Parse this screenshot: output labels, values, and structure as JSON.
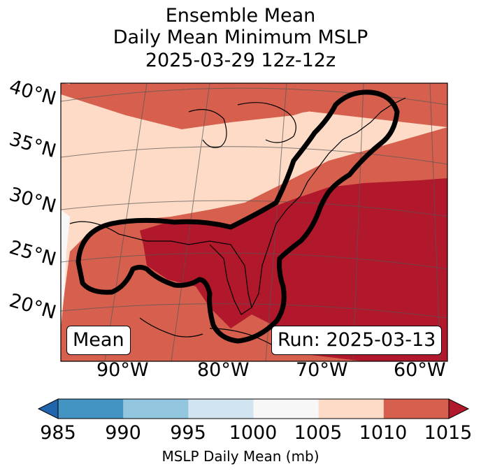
{
  "title": {
    "line1": "Ensemble Mean",
    "line2": "Daily Mean Minimum MSLP",
    "line3": "2025-03-29 12z-12z"
  },
  "map": {
    "lat_labels": [
      "40°N",
      "35°N",
      "30°N",
      "25°N",
      "20°N"
    ],
    "lon_labels": [
      "90°W",
      "80°W",
      "70°W",
      "60°W"
    ],
    "left_box": "Mean",
    "right_box": "Run: 2025-03-13"
  },
  "colorbar": {
    "ticks": [
      "985",
      "990",
      "995",
      "1000",
      "1005",
      "1010",
      "1015"
    ],
    "colors": [
      "#2166ac",
      "#4393c3",
      "#92c5de",
      "#d1e5f0",
      "#f7f7f7",
      "#fddbc7",
      "#d6604d",
      "#b2182b"
    ],
    "label": "MSLP Daily Mean (mb)"
  }
}
